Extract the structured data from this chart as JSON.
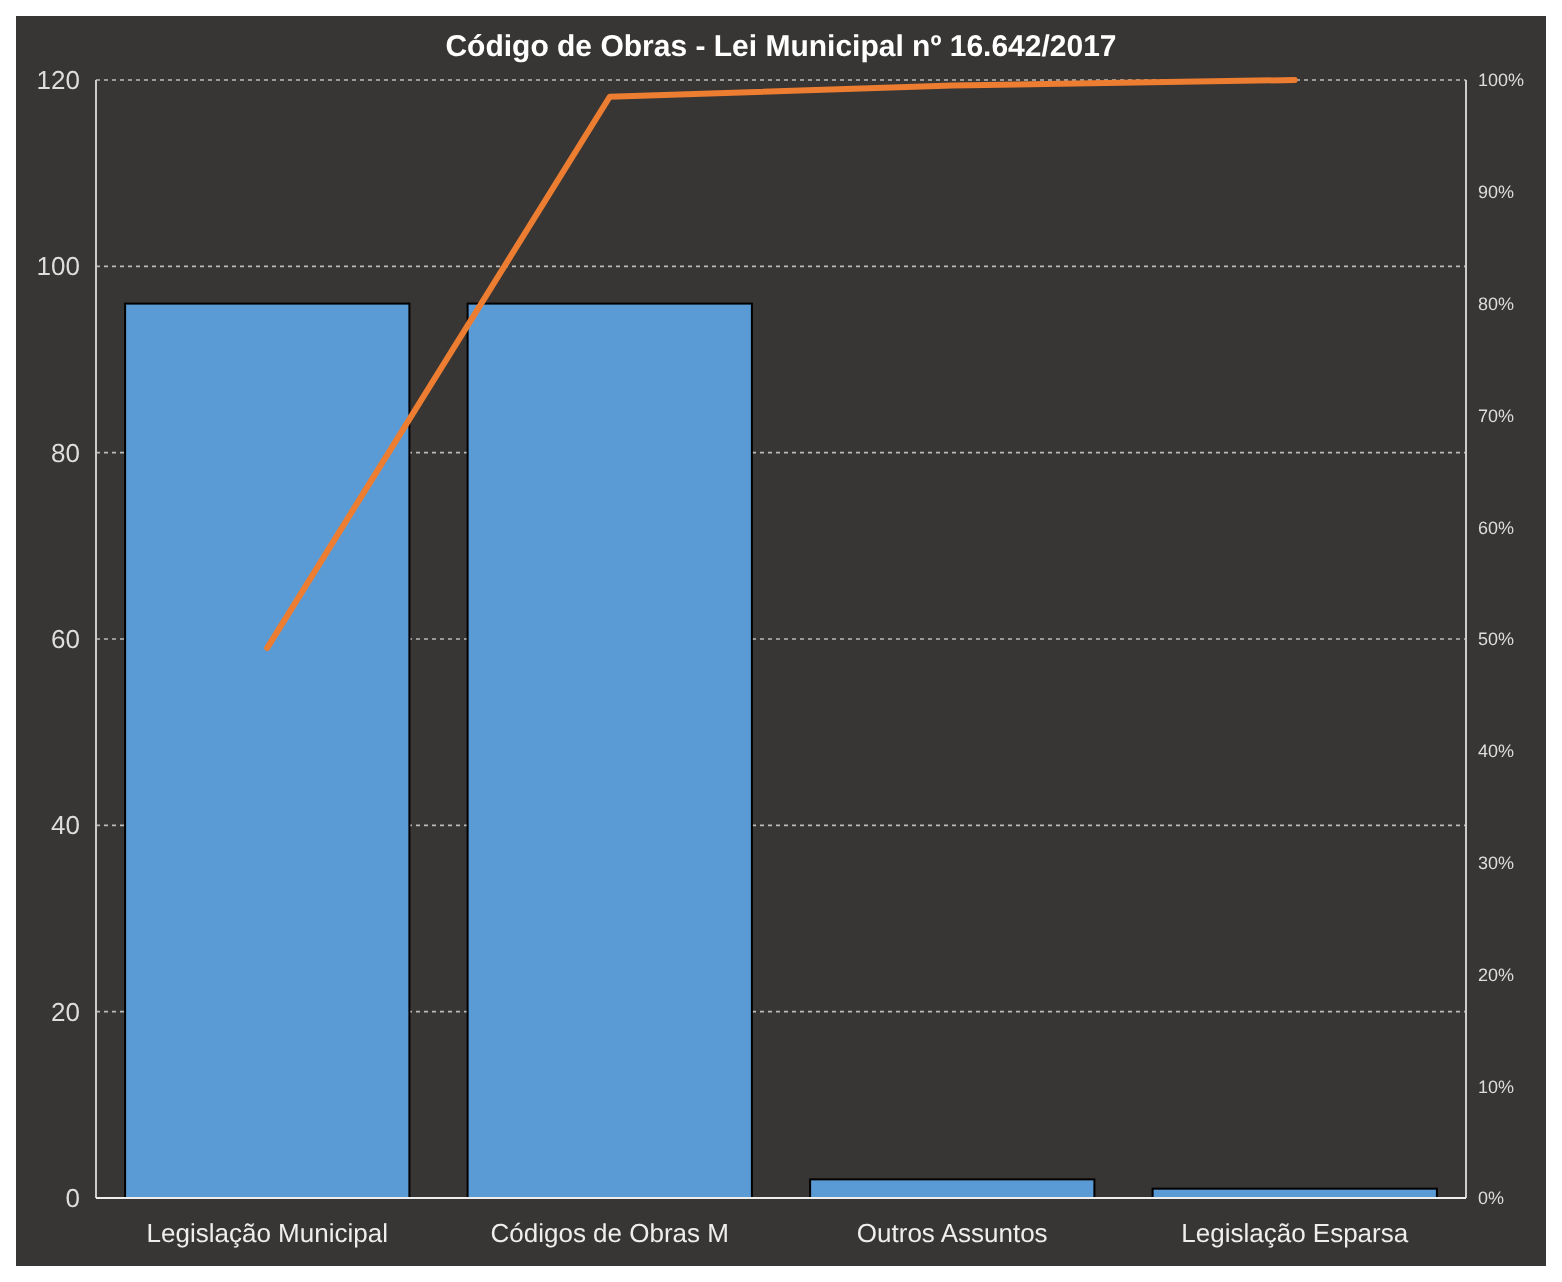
{
  "chart_data": {
    "type": "bar",
    "title": "Código de Obras - Lei Municipal nº 16.642/2017",
    "categories": [
      "Legislação Municipal",
      "Códigos de Obras M",
      "Outros Assuntos",
      "Legislação Esparsa"
    ],
    "series": [
      {
        "color": "#5b9bd5",
        "values": [
          96,
          96,
          2,
          1
        ]
      },
      {
        "type": "line",
        "axis": "y2",
        "color": "#ed7d31",
        "values": [
          49.2,
          98.5,
          99.5,
          100
        ]
      }
    ],
    "ylim": [
      0,
      120
    ],
    "yticks": [
      0,
      20,
      40,
      60,
      80,
      100,
      120
    ],
    "y2lim": [
      0,
      100
    ],
    "y2ticks": [
      {
        "value": 0,
        "label": "0%"
      },
      {
        "value": 10,
        "label": "10%"
      },
      {
        "value": 20,
        "label": "20%"
      },
      {
        "value": 30,
        "label": "30%"
      },
      {
        "value": 40,
        "label": "40%"
      },
      {
        "value": 50,
        "label": "50%"
      },
      {
        "value": 60,
        "label": "60%"
      },
      {
        "value": 70,
        "label": "70%"
      },
      {
        "value": 80,
        "label": "80%"
      },
      {
        "value": 90,
        "label": "90%"
      },
      {
        "value": 100,
        "label": "100%"
      }
    ],
    "grid": "y",
    "marker": "none",
    "line_style": "solid"
  }
}
